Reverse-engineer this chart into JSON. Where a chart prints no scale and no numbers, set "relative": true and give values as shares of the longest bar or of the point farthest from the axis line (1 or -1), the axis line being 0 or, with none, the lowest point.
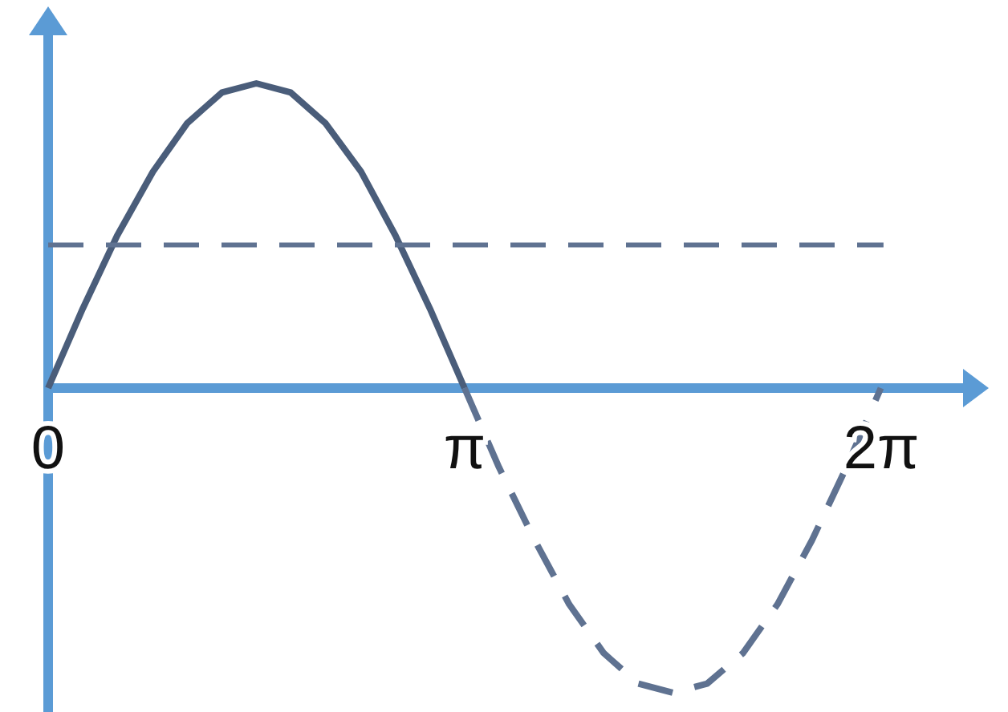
{
  "chart_data": {
    "type": "line",
    "relative": true,
    "xlim": [
      0,
      6.9
    ],
    "xticks": [
      0,
      {
        "value": 3.14159,
        "label": "π"
      },
      {
        "value": 6.28318,
        "label": "2π"
      }
    ],
    "series": [
      {
        "color": "#4a5d7a",
        "line_style": "solid",
        "x": [
          0,
          0.26,
          0.52,
          0.79,
          1.05,
          1.31,
          1.57,
          1.83,
          2.09,
          2.36,
          2.62,
          2.88,
          3.14
        ],
        "values": [
          0,
          0.26,
          0.5,
          0.71,
          0.87,
          0.97,
          1,
          0.97,
          0.87,
          0.71,
          0.5,
          0.26,
          0
        ]
      },
      {
        "color": "#5f7291",
        "line_style": "dashed",
        "x": [
          3.14,
          3.4,
          3.67,
          3.93,
          4.19,
          4.45,
          4.71,
          4.97,
          5.24,
          5.5,
          5.76,
          6.02,
          6.28
        ],
        "values": [
          0,
          -0.26,
          -0.5,
          -0.71,
          -0.87,
          -0.97,
          -1,
          -0.97,
          -0.87,
          -0.71,
          -0.5,
          -0.26,
          0
        ]
      },
      {
        "color": "#5f7291",
        "line_style": "dashed",
        "x": [
          0,
          6.3
        ],
        "values": [
          0.47,
          0.47
        ]
      }
    ]
  }
}
